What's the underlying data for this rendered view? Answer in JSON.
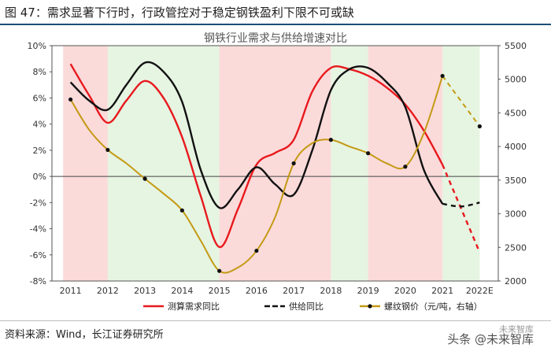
{
  "header": {
    "title": "图 47：需求显著下行时，行政管控对于稳定钢铁盈利下限不可或缺"
  },
  "source": "资料来源：Wind，长江证券研究所",
  "watermark": {
    "main": "头条 @未来智库",
    "top": "未来智库"
  },
  "chart_data": {
    "type": "line",
    "title": "钢铁行业需求与供给增速对比",
    "categories": [
      "2011",
      "2012",
      "2013",
      "2014",
      "2015",
      "2016",
      "2017",
      "2018",
      "2019",
      "2020",
      "2021",
      "2022E"
    ],
    "y_left": {
      "min": -8,
      "max": 10,
      "step": 2,
      "suffix": "%",
      "ticks": [
        "10%",
        "8%",
        "6%",
        "4%",
        "2%",
        "0%",
        "-2%",
        "-4%",
        "-6%",
        "-8%"
      ]
    },
    "y_right": {
      "min": 2000,
      "max": 5500,
      "step": 500,
      "ticks": [
        "5500",
        "5000",
        "4500",
        "4000",
        "3500",
        "3000",
        "2500",
        "2000"
      ]
    },
    "background_bands": [
      {
        "from": 0.3,
        "to": 1.5,
        "color": "#fbdada"
      },
      {
        "from": 1.5,
        "to": 4.5,
        "color": "#e6f4e2"
      },
      {
        "from": 4.5,
        "to": 7.5,
        "color": "#fbdada"
      },
      {
        "from": 7.5,
        "to": 8.5,
        "color": "#e6f4e2"
      },
      {
        "from": 8.5,
        "to": 10.5,
        "color": "#fbdada"
      },
      {
        "from": 10.5,
        "to": 11.5,
        "color": "#e6f4e2"
      }
    ],
    "series": [
      {
        "name": "测算需求同比",
        "axis": "left",
        "color": "#e8191d",
        "marker": "none",
        "dash_from": 10,
        "x": [
          0,
          0.5,
          1,
          1.5,
          2,
          2.5,
          3,
          3.5,
          4,
          4.5,
          5,
          5.5,
          6,
          6.5,
          7,
          7.5,
          8,
          8.5,
          9,
          9.5,
          10,
          11
        ],
        "values": [
          8.6,
          6.2,
          4.1,
          5.8,
          7.3,
          6.0,
          3.0,
          -1.5,
          -5.4,
          -2.5,
          0.9,
          1.8,
          2.8,
          6.5,
          8.3,
          8.2,
          7.7,
          6.8,
          5.5,
          3.5,
          0.9,
          -5.8
        ]
      },
      {
        "name": "供给同比",
        "axis": "left",
        "color": "#111111",
        "marker": "none",
        "dash_from": 10,
        "x": [
          0,
          0.5,
          1,
          1.5,
          2,
          2.5,
          3,
          3.5,
          4,
          4.5,
          5,
          5.5,
          6,
          6.5,
          7,
          7.5,
          8,
          8.5,
          9,
          9.5,
          10,
          10.5,
          11
        ],
        "values": [
          7.2,
          5.8,
          5.1,
          7.0,
          8.7,
          8.0,
          5.7,
          0.5,
          -2.4,
          -1.0,
          0.7,
          -0.6,
          -1.4,
          2.0,
          6.6,
          8.2,
          8.3,
          7.2,
          5.3,
          0.5,
          -2.1,
          -2.3,
          -2.0
        ]
      },
      {
        "name": "螺纹钢价（元/吨，右轴）",
        "axis": "right",
        "color": "#c49a14",
        "marker": "dot",
        "dash_from": 10,
        "x": [
          0,
          0.5,
          1,
          1.5,
          2,
          2.5,
          3,
          3.5,
          4,
          4.5,
          5,
          5.5,
          6,
          6.5,
          7,
          7.5,
          8,
          8.5,
          9,
          9.5,
          10,
          11
        ],
        "values": [
          4700,
          4250,
          3950,
          3750,
          3520,
          3300,
          3050,
          2600,
          2150,
          2200,
          2450,
          2950,
          3750,
          4050,
          4100,
          4000,
          3900,
          3750,
          3700,
          4200,
          5050,
          4300
        ],
        "marker_at": [
          0,
          2,
          4,
          6,
          8,
          10,
          12,
          14,
          16,
          18,
          20,
          21
        ]
      }
    ],
    "legend_position": "bottom"
  }
}
